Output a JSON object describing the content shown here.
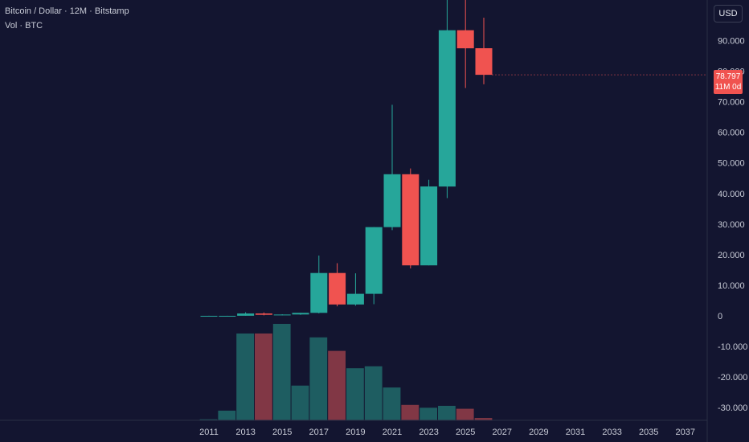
{
  "header": {
    "title": "Bitcoin / Dollar · 12M · Bitstamp",
    "volume_label": "Vol · BTC"
  },
  "currency_button": "USD",
  "price_badge": {
    "price": "78.797",
    "countdown": "11M 0d"
  },
  "colors": {
    "up": "#26a69a",
    "down": "#f05350",
    "vol_up": "#1e5d61",
    "vol_down": "#813745",
    "background": "#131530"
  },
  "chart_data": {
    "type": "candlestick",
    "title": "Bitcoin / Dollar · 12M · Bitstamp",
    "ylim": [
      -34000,
      105000
    ],
    "y_ticks": [
      90000,
      80000,
      70000,
      60000,
      50000,
      40000,
      30000,
      20000,
      10000,
      0,
      -10000,
      -20000,
      -30000
    ],
    "y_tick_labels": [
      "90.000",
      "80.000",
      "70.000",
      "60.000",
      "50.000",
      "40.000",
      "30.000",
      "20.000",
      "10.000",
      "0",
      "-10.000",
      "-20.000",
      "-30.000"
    ],
    "x_ticks": [
      "2011",
      "2013",
      "2015",
      "2017",
      "2019",
      "2021",
      "2023",
      "2025",
      "2027",
      "2029",
      "2031",
      "2033",
      "2035",
      "2037"
    ],
    "candles": [
      {
        "year": 2011,
        "open": 0,
        "high": 30,
        "low": 0,
        "close": 5
      },
      {
        "year": 2012,
        "open": 5,
        "high": 16,
        "low": 4,
        "close": 13
      },
      {
        "year": 2013,
        "open": 13,
        "high": 1160,
        "low": 13,
        "close": 750
      },
      {
        "year": 2014,
        "open": 750,
        "high": 1100,
        "low": 150,
        "close": 320
      },
      {
        "year": 2015,
        "open": 320,
        "high": 500,
        "low": 160,
        "close": 430
      },
      {
        "year": 2016,
        "open": 430,
        "high": 980,
        "low": 350,
        "close": 960
      },
      {
        "year": 2017,
        "open": 960,
        "high": 19700,
        "low": 780,
        "close": 14000
      },
      {
        "year": 2018,
        "open": 14000,
        "high": 17200,
        "low": 3100,
        "close": 3700
      },
      {
        "year": 2019,
        "open": 3700,
        "high": 13900,
        "low": 3300,
        "close": 7200
      },
      {
        "year": 2020,
        "open": 7200,
        "high": 29000,
        "low": 3800,
        "close": 29000
      },
      {
        "year": 2021,
        "open": 29000,
        "high": 69000,
        "low": 28000,
        "close": 46300
      },
      {
        "year": 2022,
        "open": 46300,
        "high": 48200,
        "low": 15500,
        "close": 16500
      },
      {
        "year": 2023,
        "open": 16500,
        "high": 44500,
        "low": 16500,
        "close": 42300
      },
      {
        "year": 2024,
        "open": 42300,
        "high": 108000,
        "low": 38500,
        "close": 93400
      },
      {
        "year": 2025,
        "open": 93400,
        "high": 126000,
        "low": 74500,
        "close": 87500
      },
      {
        "year": 2026,
        "open": 87500,
        "high": 97500,
        "low": 75700,
        "close": 78797
      }
    ],
    "volume": [
      {
        "year": 2011,
        "value": 0.5,
        "direction": "up"
      },
      {
        "year": 2012,
        "value": 5,
        "direction": "up"
      },
      {
        "year": 2013,
        "value": 45,
        "direction": "up"
      },
      {
        "year": 2014,
        "value": 45,
        "direction": "down"
      },
      {
        "year": 2015,
        "value": 50,
        "direction": "up"
      },
      {
        "year": 2016,
        "value": 18,
        "direction": "up"
      },
      {
        "year": 2017,
        "value": 43,
        "direction": "up"
      },
      {
        "year": 2018,
        "value": 36,
        "direction": "down"
      },
      {
        "year": 2019,
        "value": 27,
        "direction": "up"
      },
      {
        "year": 2020,
        "value": 28,
        "direction": "up"
      },
      {
        "year": 2021,
        "value": 17,
        "direction": "up"
      },
      {
        "year": 2022,
        "value": 8,
        "direction": "down"
      },
      {
        "year": 2023,
        "value": 6.5,
        "direction": "up"
      },
      {
        "year": 2024,
        "value": 7.5,
        "direction": "up"
      },
      {
        "year": 2025,
        "value": 6,
        "direction": "down"
      },
      {
        "year": 2026,
        "value": 1.2,
        "direction": "down"
      }
    ]
  }
}
